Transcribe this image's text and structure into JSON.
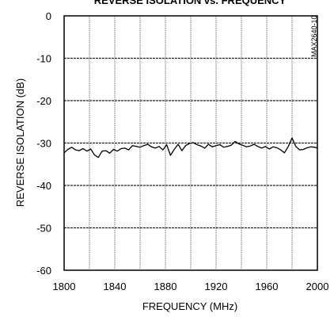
{
  "chart_data": {
    "type": "line",
    "title": "REVERSE ISOLATION vs. FREQUENCY",
    "xlabel": "FREQUENCY (MHz)",
    "ylabel": "REVERSE ISOLATION (dB)",
    "part_code": "MAX2640-10",
    "xlim": [
      1800,
      2000
    ],
    "ylim": [
      -60,
      0
    ],
    "xticks": [
      "1800",
      "1840",
      "1880",
      "1920",
      "1960",
      "2000"
    ],
    "yticks": [
      "0",
      "-10",
      "-20",
      "-30",
      "-40",
      "-50",
      "-60"
    ],
    "grid": true,
    "series": [
      {
        "x": [
          1800,
          1803,
          1806,
          1809,
          1812,
          1815,
          1818,
          1821,
          1824,
          1827,
          1830,
          1833,
          1836,
          1839,
          1842,
          1845,
          1848,
          1851,
          1854,
          1857,
          1860,
          1863,
          1866,
          1869,
          1872,
          1875,
          1878,
          1881,
          1884,
          1887,
          1890,
          1893,
          1896,
          1899,
          1902,
          1905,
          1908,
          1911,
          1914,
          1917,
          1920,
          1923,
          1926,
          1929,
          1932,
          1935,
          1938,
          1941,
          1944,
          1947,
          1950,
          1953,
          1956,
          1959,
          1962,
          1965,
          1968,
          1971,
          1974,
          1977,
          1980,
          1983,
          1986,
          1989,
          1992,
          1995,
          1998,
          2000
        ],
        "y": [
          -32.3,
          -31.5,
          -31.0,
          -31.6,
          -31.8,
          -31.3,
          -31.9,
          -31.4,
          -32.8,
          -33.4,
          -31.9,
          -31.8,
          -32.4,
          -31.5,
          -31.9,
          -31.3,
          -31.2,
          -31.6,
          -30.6,
          -30.8,
          -31.0,
          -30.6,
          -30.3,
          -30.9,
          -31.2,
          -30.8,
          -31.6,
          -30.4,
          -32.9,
          -31.5,
          -30.3,
          -31.8,
          -30.6,
          -30.1,
          -29.9,
          -30.4,
          -30.7,
          -31.2,
          -30.3,
          -30.9,
          -30.6,
          -30.4,
          -31.0,
          -30.8,
          -30.5,
          -29.6,
          -30.2,
          -30.5,
          -30.9,
          -30.7,
          -30.3,
          -30.8,
          -31.2,
          -30.8,
          -31.4,
          -30.9,
          -31.1,
          -31.6,
          -32.3,
          -30.8,
          -28.8,
          -30.8,
          -31.6,
          -31.5,
          -31.1,
          -30.9,
          -31.0,
          -31.2
        ]
      }
    ]
  }
}
